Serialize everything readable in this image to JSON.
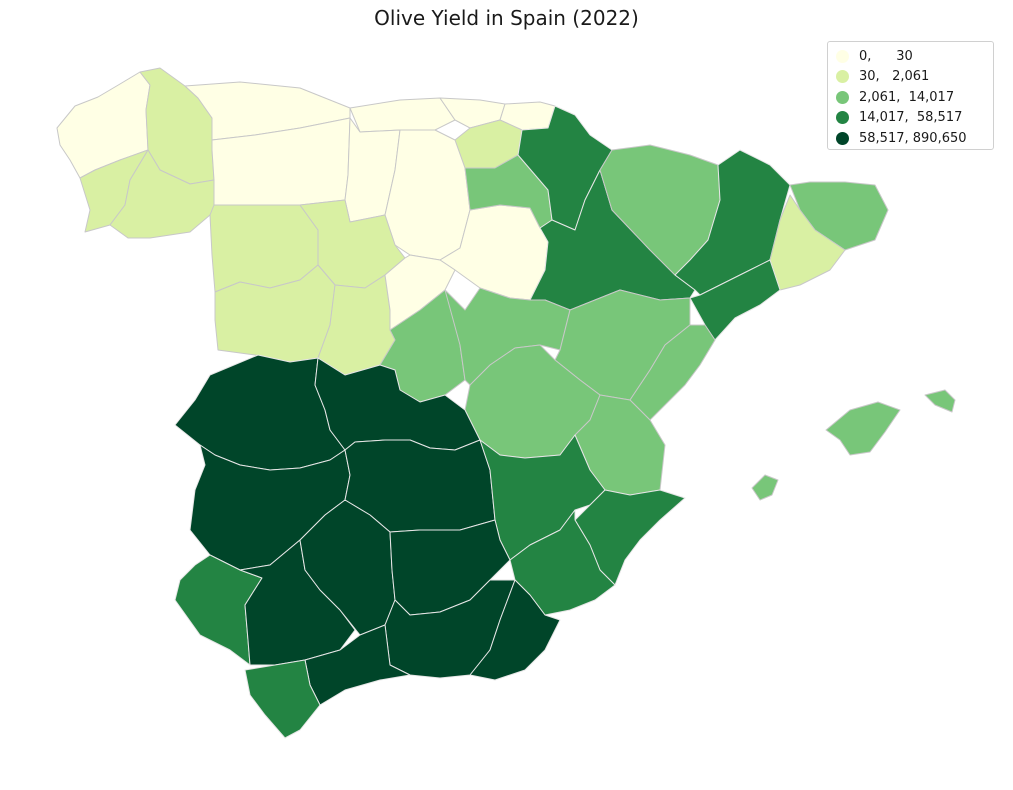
{
  "title": "Olive Yield in Spain (2022)",
  "colors": {
    "class_0": "#ffffe5",
    "class_1": "#d9f0a3",
    "class_2": "#78c679",
    "class_3": "#238443",
    "class_4": "#004529",
    "border_light": "#c8c8c8",
    "border_dark": "#e6e6e6"
  },
  "legend": [
    {
      "label": "0,      30",
      "class": "class_0"
    },
    {
      "label": "30,   2,061",
      "class": "class_1"
    },
    {
      "label": "2,061,  14,017",
      "class": "class_2"
    },
    {
      "label": "14,017,  58,517",
      "class": "class_3"
    },
    {
      "label": "58,517, 890,650",
      "class": "class_4"
    }
  ],
  "provinces": [
    {
      "name": "A Coruña",
      "class": "class_0"
    },
    {
      "name": "Lugo",
      "class": "class_1"
    },
    {
      "name": "Pontevedra",
      "class": "class_1"
    },
    {
      "name": "Ourense",
      "class": "class_1"
    },
    {
      "name": "Asturias",
      "class": "class_0"
    },
    {
      "name": "Cantabria",
      "class": "class_0"
    },
    {
      "name": "Bizkaia",
      "class": "class_0"
    },
    {
      "name": "Gipuzkoa",
      "class": "class_0"
    },
    {
      "name": "Álava",
      "class": "class_1"
    },
    {
      "name": "León",
      "class": "class_0"
    },
    {
      "name": "Palencia",
      "class": "class_0"
    },
    {
      "name": "Burgos",
      "class": "class_0"
    },
    {
      "name": "Zamora",
      "class": "class_1"
    },
    {
      "name": "Valladolid",
      "class": "class_1"
    },
    {
      "name": "Soria",
      "class": "class_0"
    },
    {
      "name": "Salamanca",
      "class": "class_1"
    },
    {
      "name": "Ávila",
      "class": "class_1"
    },
    {
      "name": "Segovia",
      "class": "class_0"
    },
    {
      "name": "Madrid",
      "class": "class_2"
    },
    {
      "name": "La Rioja",
      "class": "class_2"
    },
    {
      "name": "Navarra",
      "class": "class_3"
    },
    {
      "name": "Zaragoza",
      "class": "class_3"
    },
    {
      "name": "Huesca",
      "class": "class_2"
    },
    {
      "name": "Lleida",
      "class": "class_3"
    },
    {
      "name": "Girona",
      "class": "class_2"
    },
    {
      "name": "Barcelona",
      "class": "class_1"
    },
    {
      "name": "Tarragona",
      "class": "class_3"
    },
    {
      "name": "Guadalajara",
      "class": "class_2"
    },
    {
      "name": "Teruel",
      "class": "class_2"
    },
    {
      "name": "Castellón",
      "class": "class_2"
    },
    {
      "name": "Cuenca",
      "class": "class_2"
    },
    {
      "name": "Valencia",
      "class": "class_2"
    },
    {
      "name": "Cáceres",
      "class": "class_4"
    },
    {
      "name": "Toledo",
      "class": "class_4"
    },
    {
      "name": "Badajoz",
      "class": "class_4"
    },
    {
      "name": "Ciudad Real",
      "class": "class_4"
    },
    {
      "name": "Albacete",
      "class": "class_3"
    },
    {
      "name": "Alicante",
      "class": "class_3"
    },
    {
      "name": "Murcia",
      "class": "class_3"
    },
    {
      "name": "Huelva",
      "class": "class_3"
    },
    {
      "name": "Sevilla",
      "class": "class_4"
    },
    {
      "name": "Córdoba",
      "class": "class_4"
    },
    {
      "name": "Jaén",
      "class": "class_4"
    },
    {
      "name": "Granada",
      "class": "class_4"
    },
    {
      "name": "Almería",
      "class": "class_4"
    },
    {
      "name": "Málaga",
      "class": "class_4"
    },
    {
      "name": "Cádiz",
      "class": "class_3"
    },
    {
      "name": "Mallorca",
      "class": "class_2"
    },
    {
      "name": "Menorca",
      "class": "class_2"
    },
    {
      "name": "Ibiza",
      "class": "class_2"
    }
  ]
}
